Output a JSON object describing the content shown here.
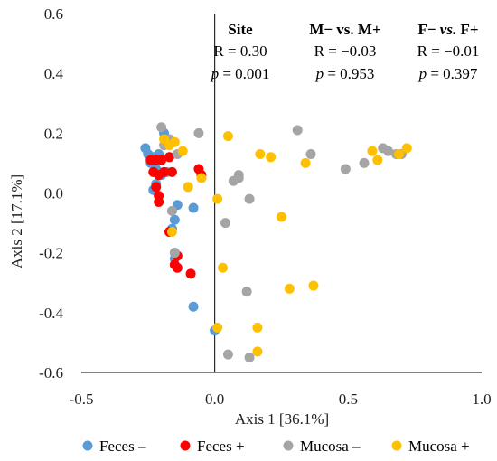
{
  "chart_data": {
    "type": "scatter",
    "xlabel": "Axis 1 [36.1%]",
    "ylabel": "Axis 2 [17.1%]",
    "xlim": [
      -0.5,
      1.0
    ],
    "ylim": [
      -0.6,
      0.6
    ],
    "xticks": [
      "-0.5",
      "0.0",
      "0.5",
      "1.0"
    ],
    "yticks": [
      "0.6",
      "0.4",
      "0.2",
      "0.0",
      "-0.2",
      "-0.4",
      "-0.6"
    ],
    "grid": false,
    "legend": "bottom",
    "annotations": {
      "site": {
        "head": "Site",
        "r": "R = 0.30",
        "p_sym": "p",
        "p_val": " = 0.001"
      },
      "mm": {
        "head": "M− vs. M+",
        "r": "R = −0.03",
        "p_sym": "p",
        "p_val": " = 0.953"
      },
      "ff": {
        "head_a": "F− ",
        "head_b": "vs.",
        "head_c": " F+",
        "r": "R = −0.01",
        "p_sym": "p",
        "p_val": " = 0.397"
      }
    },
    "series": [
      {
        "name": "Feces –",
        "color": "#5B9BD5",
        "points": [
          [
            -0.26,
            0.15
          ],
          [
            -0.25,
            0.13
          ],
          [
            -0.24,
            0.1
          ],
          [
            -0.23,
            0.12
          ],
          [
            -0.22,
            0.08
          ],
          [
            -0.21,
            0.13
          ],
          [
            -0.19,
            0.2
          ],
          [
            -0.22,
            0.03
          ],
          [
            -0.23,
            0.01
          ],
          [
            -0.18,
            0.07
          ],
          [
            -0.14,
            -0.04
          ],
          [
            -0.15,
            -0.09
          ],
          [
            -0.16,
            -0.12
          ],
          [
            -0.15,
            -0.2
          ],
          [
            -0.15,
            -0.22
          ],
          [
            -0.08,
            -0.05
          ],
          [
            -0.08,
            -0.38
          ],
          [
            0.0,
            -0.46
          ],
          [
            -0.2,
            0.06
          ]
        ]
      },
      {
        "name": "Feces +",
        "color": "#FF0000",
        "points": [
          [
            -0.24,
            0.11
          ],
          [
            -0.22,
            0.11
          ],
          [
            -0.2,
            0.11
          ],
          [
            -0.23,
            0.07
          ],
          [
            -0.21,
            0.06
          ],
          [
            -0.19,
            0.07
          ],
          [
            -0.16,
            0.07
          ],
          [
            -0.22,
            0.02
          ],
          [
            -0.21,
            -0.01
          ],
          [
            -0.21,
            -0.03
          ],
          [
            -0.17,
            0.12
          ],
          [
            -0.06,
            0.08
          ],
          [
            -0.05,
            0.06
          ],
          [
            -0.17,
            -0.13
          ],
          [
            -0.15,
            -0.24
          ],
          [
            -0.14,
            -0.25
          ],
          [
            -0.09,
            -0.27
          ],
          [
            -0.14,
            -0.21
          ]
        ]
      },
      {
        "name": "Mucosa –",
        "color": "#A5A5A5",
        "points": [
          [
            -0.2,
            0.22
          ],
          [
            -0.19,
            0.16
          ],
          [
            -0.17,
            0.18
          ],
          [
            -0.14,
            0.13
          ],
          [
            -0.06,
            0.2
          ],
          [
            -0.16,
            -0.06
          ],
          [
            -0.15,
            -0.2
          ],
          [
            0.04,
            -0.1
          ],
          [
            0.07,
            0.04
          ],
          [
            0.09,
            0.05
          ],
          [
            0.09,
            0.06
          ],
          [
            0.13,
            -0.02
          ],
          [
            0.31,
            0.21
          ],
          [
            0.36,
            0.13
          ],
          [
            0.12,
            -0.33
          ],
          [
            0.05,
            -0.54
          ],
          [
            0.13,
            -0.55
          ],
          [
            0.49,
            0.08
          ],
          [
            0.56,
            0.1
          ],
          [
            0.63,
            0.15
          ],
          [
            0.65,
            0.14
          ],
          [
            0.68,
            0.13
          ],
          [
            0.7,
            0.13
          ]
        ]
      },
      {
        "name": "Mucosa +",
        "color": "#FFC000",
        "points": [
          [
            -0.19,
            0.18
          ],
          [
            -0.17,
            0.16
          ],
          [
            -0.15,
            0.17
          ],
          [
            -0.12,
            0.14
          ],
          [
            -0.05,
            0.05
          ],
          [
            -0.1,
            0.02
          ],
          [
            0.05,
            0.19
          ],
          [
            0.17,
            0.13
          ],
          [
            0.21,
            0.12
          ],
          [
            0.34,
            0.1
          ],
          [
            0.59,
            0.14
          ],
          [
            0.61,
            0.11
          ],
          [
            0.69,
            0.13
          ],
          [
            0.72,
            0.15
          ],
          [
            0.25,
            -0.08
          ],
          [
            0.01,
            -0.02
          ],
          [
            0.03,
            -0.25
          ],
          [
            0.28,
            -0.32
          ],
          [
            0.37,
            -0.31
          ],
          [
            0.01,
            -0.45
          ],
          [
            0.16,
            -0.45
          ],
          [
            0.16,
            -0.53
          ],
          [
            -0.16,
            -0.13
          ]
        ]
      }
    ]
  }
}
